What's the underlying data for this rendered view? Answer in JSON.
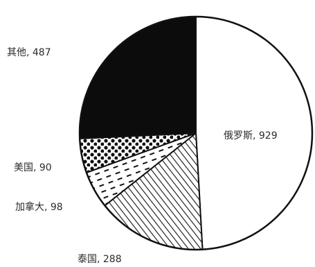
{
  "chart_data": {
    "type": "pie",
    "title": "",
    "slices": [
      {
        "label": "俄罗斯",
        "value": 929,
        "pattern": "white"
      },
      {
        "label": "泰国",
        "value": 288,
        "pattern": "diagonal-hatch"
      },
      {
        "label": "加拿大",
        "value": 98,
        "pattern": "dashes"
      },
      {
        "label": "美国",
        "value": 90,
        "pattern": "dots"
      },
      {
        "label": "其他",
        "value": 487,
        "pattern": "black"
      }
    ],
    "label_separator": ", "
  }
}
